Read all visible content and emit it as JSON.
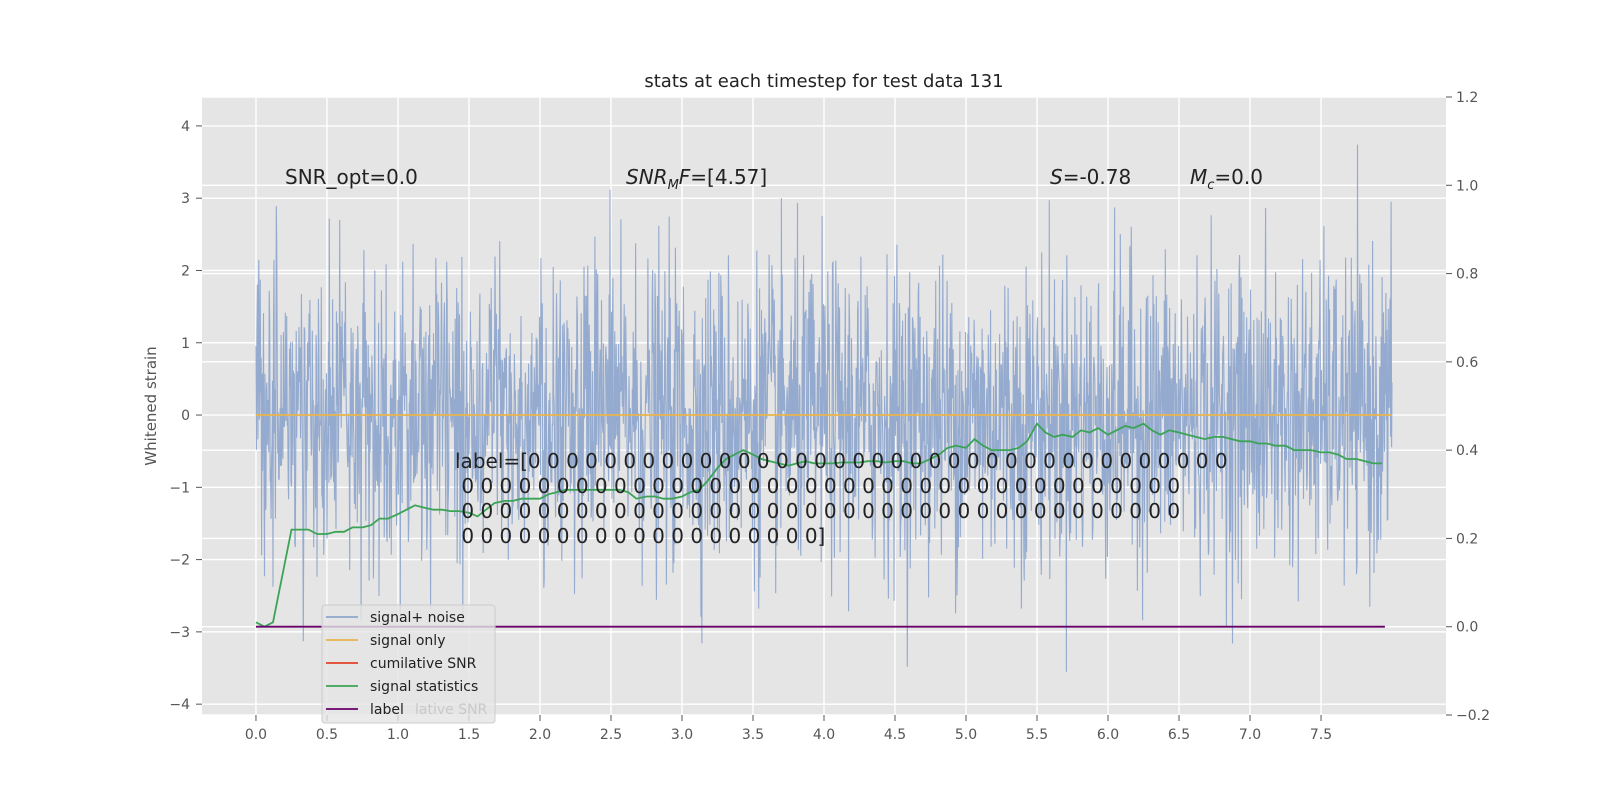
{
  "chart_data": {
    "type": "line",
    "title": "stats at each timestep for test data 131",
    "xlabel": "",
    "ylabel": "Whitened strain",
    "y2label": "",
    "xlim": [
      -0.38,
      8.38
    ],
    "ylim": [
      -4.15,
      4.4
    ],
    "y2lim": [
      -0.2,
      1.2
    ],
    "x_ticks": [
      "0.0",
      "0.5",
      "1.0",
      "1.5",
      "2.0",
      "2.5",
      "3.0",
      "3.5",
      "4.0",
      "4.5",
      "5.0",
      "5.5",
      "6.0",
      "6.5",
      "7.0",
      "7.5"
    ],
    "y_ticks": [
      "4",
      "3",
      "2",
      "1",
      "0",
      "−1",
      "−2",
      "−3",
      "−4"
    ],
    "y2_ticks": [
      "1.2",
      "1.0",
      "0.8",
      "0.6",
      "0.4",
      "0.2",
      "0.0",
      "−0.2"
    ],
    "grid": true,
    "legend_position": "lower-left",
    "legend_extra_text": "lative SNR",
    "series": [
      {
        "name": "signal+ noise",
        "color": "#8fa6cc",
        "axis": "left",
        "x_range": [
          0.0,
          8.0
        ],
        "approx_std": 1.0,
        "approx_max": 4.05,
        "approx_min": -3.65
      },
      {
        "name": "signal only",
        "color": "#e8b44c",
        "axis": "left",
        "x": [
          0.0,
          8.0
        ],
        "y": [
          0.0,
          0.0
        ]
      },
      {
        "name": "cumilative SNR",
        "color": "#e2412a",
        "axis": "right",
        "x": [],
        "y": []
      },
      {
        "name": "signal statistics",
        "color": "#3aa355",
        "axis": "right",
        "x": [
          0.0,
          0.06,
          0.12,
          0.25,
          0.37,
          0.43,
          0.5,
          0.56,
          0.62,
          0.68,
          0.75,
          0.81,
          0.87,
          0.93,
          1.0,
          1.06,
          1.12,
          1.18,
          1.25,
          1.31,
          1.37,
          1.43,
          1.5,
          1.56,
          1.62,
          1.68,
          1.75,
          1.81,
          1.87,
          1.93,
          2.0,
          2.06,
          2.12,
          2.18,
          2.25,
          2.31,
          2.37,
          2.43,
          2.5,
          2.56,
          2.62,
          2.68,
          2.75,
          2.81,
          2.87,
          2.93,
          3.0,
          3.06,
          3.12,
          3.18,
          3.25,
          3.31,
          3.37,
          3.43,
          3.5,
          3.56,
          3.62,
          3.68,
          3.75,
          3.81,
          3.87,
          3.93,
          4.0,
          4.06,
          4.12,
          4.18,
          4.25,
          4.31,
          4.37,
          4.43,
          4.5,
          4.56,
          4.62,
          4.68,
          4.75,
          4.81,
          4.87,
          4.93,
          5.0,
          5.06,
          5.12,
          5.18,
          5.25,
          5.31,
          5.37,
          5.43,
          5.5,
          5.56,
          5.62,
          5.68,
          5.75,
          5.81,
          5.87,
          5.93,
          6.0,
          6.06,
          6.12,
          6.18,
          6.25,
          6.31,
          6.37,
          6.43,
          6.5,
          6.56,
          6.62,
          6.68,
          6.75,
          6.81,
          6.87,
          6.93,
          7.0,
          7.06,
          7.12,
          7.18,
          7.25,
          7.31,
          7.37,
          7.43,
          7.5,
          7.56,
          7.62,
          7.68,
          7.75,
          7.81,
          7.87,
          7.93
        ],
        "y": [
          0.01,
          0.0,
          0.01,
          0.22,
          0.22,
          0.21,
          0.21,
          0.215,
          0.215,
          0.225,
          0.225,
          0.23,
          0.245,
          0.245,
          0.255,
          0.265,
          0.275,
          0.27,
          0.265,
          0.265,
          0.262,
          0.262,
          0.258,
          0.25,
          0.265,
          0.28,
          0.285,
          0.285,
          0.29,
          0.29,
          0.29,
          0.3,
          0.305,
          0.31,
          0.31,
          0.31,
          0.31,
          0.31,
          0.31,
          0.31,
          0.305,
          0.29,
          0.295,
          0.295,
          0.29,
          0.29,
          0.295,
          0.305,
          0.31,
          0.33,
          0.36,
          0.38,
          0.39,
          0.4,
          0.39,
          0.38,
          0.375,
          0.37,
          0.365,
          0.37,
          0.375,
          0.37,
          0.37,
          0.37,
          0.372,
          0.372,
          0.372,
          0.375,
          0.375,
          0.372,
          0.375,
          0.375,
          0.37,
          0.37,
          0.38,
          0.39,
          0.405,
          0.41,
          0.405,
          0.425,
          0.41,
          0.4,
          0.4,
          0.4,
          0.405,
          0.42,
          0.46,
          0.44,
          0.43,
          0.435,
          0.43,
          0.445,
          0.44,
          0.45,
          0.435,
          0.445,
          0.455,
          0.45,
          0.46,
          0.445,
          0.435,
          0.445,
          0.44,
          0.435,
          0.43,
          0.425,
          0.43,
          0.43,
          0.425,
          0.42,
          0.42,
          0.415,
          0.415,
          0.41,
          0.41,
          0.4,
          0.4,
          0.4,
          0.395,
          0.395,
          0.39,
          0.38,
          0.38,
          0.375,
          0.37,
          0.37
        ]
      },
      {
        "name": "label",
        "color": "#6a006a",
        "axis": "right",
        "x": [
          0.0,
          7.95
        ],
        "y": [
          0.0,
          0.0
        ]
      }
    ],
    "annotations": [
      {
        "text": "SNR_opt=0.0"
      },
      {
        "text_italic": "SNR",
        "sub": "M",
        "text_italic2": "F",
        "text_rest": "=[4.57]"
      },
      {
        "text_italic": "S",
        "text_rest": "=-0.78"
      },
      {
        "text_italic": "M",
        "sub": "c",
        "text_rest": "=0.0"
      }
    ],
    "label_text_lines": [
      "label=[0 0 0 0 0 0 0 0 0 0 0 0 0 0 0 0 0 0 0 0 0 0 0 0 0 0 0 0 0 0 0 0 0 0 0 0 0",
      " 0 0 0 0 0 0 0 0 0 0 0 0 0 0 0 0 0 0 0 0 0 0 0 0 0 0 0 0 0 0 0 0 0 0 0 0 0 0",
      " 0 0 0 0 0 0 0 0 0 0 0 0 0 0 0 0 0 0 0 0 0 0 0 0 0 0 0 0 0 0 0 0 0 0 0 0 0 0",
      " 0 0 0 0 0 0 0 0 0 0 0 0 0 0 0 0 0 0 0]"
    ]
  }
}
